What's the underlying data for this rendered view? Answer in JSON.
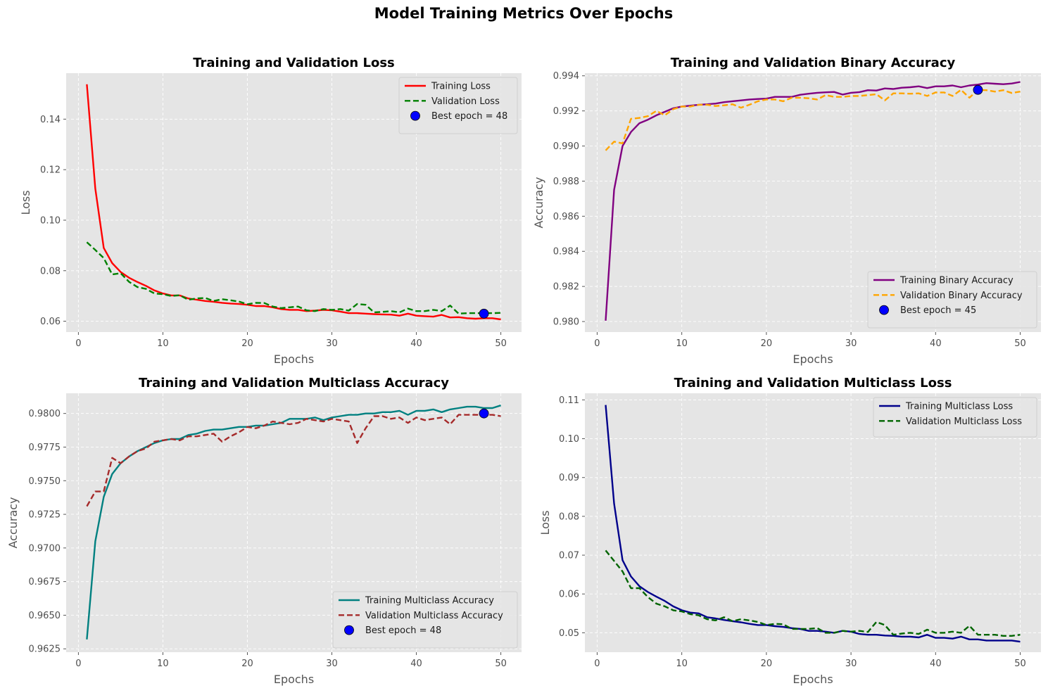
{
  "figure": {
    "suptitle": "Model Training Metrics Over Epochs"
  },
  "colors": {
    "plot_bg": "#e5e5e5",
    "grid": "#ffffff",
    "tick_text": "#4d4d4d",
    "label_text": "#555555",
    "title_text": "#000000"
  },
  "chart_data": [
    {
      "type": "line",
      "title": "Training and Validation Loss",
      "xlabel": "Epochs",
      "ylabel": "Loss",
      "xlim": [
        -1.45,
        52.45
      ],
      "ylim": [
        0.0557,
        0.1582
      ],
      "xticks": [
        0,
        10,
        20,
        30,
        40,
        50
      ],
      "yticks": [
        0.06,
        0.08,
        0.1,
        0.12,
        0.14
      ],
      "ytick_labels": [
        "0.06",
        "0.08",
        "0.10",
        "0.12",
        "0.14"
      ],
      "legend_loc": "top-right",
      "x": [
        1,
        2,
        3,
        4,
        5,
        6,
        7,
        8,
        9,
        10,
        11,
        12,
        13,
        14,
        15,
        16,
        17,
        18,
        19,
        20,
        21,
        22,
        23,
        24,
        25,
        26,
        27,
        28,
        29,
        30,
        31,
        32,
        33,
        34,
        35,
        36,
        37,
        38,
        39,
        40,
        41,
        42,
        43,
        44,
        45,
        46,
        47,
        48,
        49,
        50
      ],
      "series": [
        {
          "name": "Training Loss",
          "color": "#ff0000",
          "dash": "solid",
          "values": [
            0.1538,
            0.1125,
            0.089,
            0.083,
            0.0795,
            0.0772,
            0.0755,
            0.074,
            0.0722,
            0.071,
            0.0702,
            0.0702,
            0.069,
            0.0685,
            0.068,
            0.0677,
            0.0673,
            0.067,
            0.0668,
            0.0665,
            0.066,
            0.066,
            0.0655,
            0.0648,
            0.0645,
            0.0645,
            0.064,
            0.0642,
            0.0645,
            0.0643,
            0.0638,
            0.0632,
            0.0632,
            0.063,
            0.0628,
            0.0627,
            0.0626,
            0.0622,
            0.063,
            0.0622,
            0.062,
            0.0618,
            0.0625,
            0.0615,
            0.0616,
            0.0612,
            0.061,
            0.0612,
            0.0612,
            0.0607
          ]
        },
        {
          "name": "Validation Loss",
          "color": "#008000",
          "dash": "dashed",
          "values": [
            0.0913,
            0.0882,
            0.085,
            0.0785,
            0.079,
            0.0756,
            0.0735,
            0.0728,
            0.071,
            0.0707,
            0.07,
            0.0703,
            0.0685,
            0.069,
            0.0692,
            0.068,
            0.0687,
            0.0683,
            0.0678,
            0.0667,
            0.0673,
            0.0672,
            0.0658,
            0.0652,
            0.0655,
            0.0658,
            0.0643,
            0.064,
            0.0648,
            0.0645,
            0.0648,
            0.0642,
            0.0668,
            0.0665,
            0.0635,
            0.0637,
            0.064,
            0.0635,
            0.065,
            0.064,
            0.064,
            0.0645,
            0.064,
            0.0662,
            0.063,
            0.0632,
            0.0632,
            0.0632,
            0.0632,
            0.0633
          ]
        }
      ],
      "best": {
        "label": "Best epoch = 48",
        "x": 48,
        "y": 0.063,
        "color": "#0000ff"
      }
    },
    {
      "type": "line",
      "title": "Training and Validation Binary Accuracy",
      "xlabel": "Epochs",
      "ylabel": "Accuracy",
      "xlim": [
        -1.45,
        52.45
      ],
      "ylim": [
        0.9794,
        0.99415
      ],
      "xticks": [
        0,
        10,
        20,
        30,
        40,
        50
      ],
      "yticks": [
        0.98,
        0.982,
        0.984,
        0.986,
        0.988,
        0.99,
        0.992,
        0.994
      ],
      "ytick_labels": [
        "0.980",
        "0.982",
        "0.984",
        "0.986",
        "0.988",
        "0.990",
        "0.992",
        "0.994"
      ],
      "legend_loc": "bottom-right",
      "x": [
        1,
        2,
        3,
        4,
        5,
        6,
        7,
        8,
        9,
        10,
        11,
        12,
        13,
        14,
        15,
        16,
        17,
        18,
        19,
        20,
        21,
        22,
        23,
        24,
        25,
        26,
        27,
        28,
        29,
        30,
        31,
        32,
        33,
        34,
        35,
        36,
        37,
        38,
        39,
        40,
        41,
        42,
        43,
        44,
        45,
        46,
        47,
        48,
        49,
        50
      ],
      "series": [
        {
          "name": "Training Binary Accuracy",
          "color": "#800080",
          "dash": "solid",
          "values": [
            0.98005,
            0.9875,
            0.99,
            0.9908,
            0.9913,
            0.9915,
            0.99175,
            0.99195,
            0.99215,
            0.99225,
            0.9923,
            0.99235,
            0.99238,
            0.99242,
            0.9925,
            0.99255,
            0.9926,
            0.99265,
            0.99268,
            0.9927,
            0.9928,
            0.9928,
            0.9928,
            0.99292,
            0.99298,
            0.99303,
            0.99306,
            0.99308,
            0.99293,
            0.99303,
            0.99307,
            0.99318,
            0.99316,
            0.99328,
            0.99325,
            0.99332,
            0.99335,
            0.9934,
            0.9933,
            0.9934,
            0.9934,
            0.99345,
            0.99335,
            0.99345,
            0.9935,
            0.99358,
            0.99355,
            0.99352,
            0.99356,
            0.99365
          ]
        },
        {
          "name": "Validation Binary Accuracy",
          "color": "#ffa500",
          "dash": "dashed",
          "values": [
            0.98975,
            0.99025,
            0.99015,
            0.99155,
            0.9916,
            0.9917,
            0.992,
            0.99175,
            0.9921,
            0.99225,
            0.99225,
            0.99235,
            0.99235,
            0.99228,
            0.99232,
            0.99238,
            0.99218,
            0.99235,
            0.99255,
            0.99265,
            0.99265,
            0.99255,
            0.99275,
            0.99275,
            0.99272,
            0.99265,
            0.9929,
            0.9928,
            0.9928,
            0.99285,
            0.99285,
            0.9929,
            0.99295,
            0.9926,
            0.993,
            0.993,
            0.99298,
            0.993,
            0.99285,
            0.99305,
            0.99305,
            0.99285,
            0.9932,
            0.99275,
            0.9932,
            0.99318,
            0.9931,
            0.99318,
            0.99302,
            0.9931
          ]
        }
      ],
      "best": {
        "label": "Best epoch = 45",
        "x": 45,
        "y": 0.9932,
        "color": "#0000ff"
      }
    },
    {
      "type": "line",
      "title": "Training and Validation Multiclass Accuracy",
      "xlabel": "Epochs",
      "ylabel": "Accuracy",
      "xlim": [
        -1.45,
        52.45
      ],
      "ylim": [
        0.96225,
        0.9815
      ],
      "xticks": [
        0,
        10,
        20,
        30,
        40,
        50
      ],
      "yticks": [
        0.9625,
        0.965,
        0.9675,
        0.97,
        0.9725,
        0.975,
        0.9775,
        0.98
      ],
      "ytick_labels": [
        "0.9625",
        "0.9650",
        "0.9675",
        "0.9700",
        "0.9725",
        "0.9750",
        "0.9775",
        "0.9800"
      ],
      "legend_loc": "bottom-right",
      "x": [
        1,
        2,
        3,
        4,
        5,
        6,
        7,
        8,
        9,
        10,
        11,
        12,
        13,
        14,
        15,
        16,
        17,
        18,
        19,
        20,
        21,
        22,
        23,
        24,
        25,
        26,
        27,
        28,
        29,
        30,
        31,
        32,
        33,
        34,
        35,
        36,
        37,
        38,
        39,
        40,
        41,
        42,
        43,
        44,
        45,
        46,
        47,
        48,
        49,
        50
      ],
      "series": [
        {
          "name": "Training Multiclass Accuracy",
          "color": "#008080",
          "dash": "solid",
          "values": [
            0.9632,
            0.9705,
            0.9738,
            0.9755,
            0.9763,
            0.9768,
            0.9772,
            0.9775,
            0.9778,
            0.978,
            0.9781,
            0.9781,
            0.9784,
            0.9785,
            0.9787,
            0.9788,
            0.9788,
            0.9789,
            0.979,
            0.979,
            0.9791,
            0.9791,
            0.9792,
            0.9793,
            0.9796,
            0.9796,
            0.9796,
            0.9797,
            0.9795,
            0.9797,
            0.9798,
            0.9799,
            0.9799,
            0.98,
            0.98,
            0.9801,
            0.9801,
            0.9802,
            0.9799,
            0.9802,
            0.9802,
            0.9803,
            0.9801,
            0.9803,
            0.9804,
            0.9805,
            0.9805,
            0.9804,
            0.9804,
            0.9806
          ]
        },
        {
          "name": "Validation Multiclass Accuracy",
          "color": "#a52a2a",
          "dash": "dashed",
          "values": [
            0.9731,
            0.9742,
            0.9742,
            0.9767,
            0.9763,
            0.9768,
            0.9772,
            0.9774,
            0.9779,
            0.978,
            0.9781,
            0.978,
            0.9783,
            0.9783,
            0.9784,
            0.9785,
            0.9779,
            0.9783,
            0.9786,
            0.979,
            0.9789,
            0.9791,
            0.9794,
            0.9793,
            0.9792,
            0.9793,
            0.9796,
            0.9795,
            0.9794,
            0.9796,
            0.9795,
            0.9794,
            0.9778,
            0.9789,
            0.9798,
            0.9798,
            0.9796,
            0.9797,
            0.9793,
            0.9797,
            0.9795,
            0.9796,
            0.9797,
            0.9792,
            0.9799,
            0.9799,
            0.9799,
            0.9799,
            0.9799,
            0.9798
          ]
        }
      ],
      "best": {
        "label": "Best epoch = 48",
        "x": 48,
        "y": 0.98,
        "color": "#0000ff"
      }
    },
    {
      "type": "line",
      "title": "Training and Validation Multiclass Loss",
      "xlabel": "Epochs",
      "ylabel": "Loss",
      "xlim": [
        -1.45,
        52.45
      ],
      "ylim": [
        0.045,
        0.1117
      ],
      "xticks": [
        0,
        10,
        20,
        30,
        40,
        50
      ],
      "yticks": [
        0.05,
        0.06,
        0.07,
        0.08,
        0.09,
        0.1,
        0.11
      ],
      "ytick_labels": [
        "0.05",
        "0.06",
        "0.07",
        "0.08",
        "0.09",
        "0.10",
        "0.11"
      ],
      "legend_loc": "top-right",
      "x": [
        1,
        2,
        3,
        4,
        5,
        6,
        7,
        8,
        9,
        10,
        11,
        12,
        13,
        14,
        15,
        16,
        17,
        18,
        19,
        20,
        21,
        22,
        23,
        24,
        25,
        26,
        27,
        28,
        29,
        30,
        31,
        32,
        33,
        34,
        35,
        36,
        37,
        38,
        39,
        40,
        41,
        42,
        43,
        44,
        45,
        46,
        47,
        48,
        49,
        50
      ],
      "series": [
        {
          "name": "Training Multiclass Loss",
          "color": "#00008b",
          "dash": "solid",
          "values": [
            0.1087,
            0.0833,
            0.0687,
            0.0645,
            0.062,
            0.0605,
            0.0593,
            0.0582,
            0.0568,
            0.0558,
            0.0552,
            0.055,
            0.054,
            0.0537,
            0.0533,
            0.053,
            0.0527,
            0.0523,
            0.052,
            0.052,
            0.0517,
            0.0515,
            0.0512,
            0.051,
            0.0505,
            0.0505,
            0.0503,
            0.05,
            0.0505,
            0.0503,
            0.0497,
            0.0495,
            0.0495,
            0.0493,
            0.0492,
            0.049,
            0.049,
            0.0488,
            0.0495,
            0.0487,
            0.0487,
            0.0485,
            0.049,
            0.0483,
            0.0483,
            0.048,
            0.048,
            0.048,
            0.048,
            0.0477
          ]
        },
        {
          "name": "Validation Multiclass Loss",
          "color": "#006400",
          "dash": "dashed",
          "values": [
            0.0712,
            0.0685,
            0.0658,
            0.0615,
            0.0615,
            0.0592,
            0.0575,
            0.0568,
            0.0558,
            0.0555,
            0.0548,
            0.0545,
            0.0535,
            0.0532,
            0.054,
            0.053,
            0.0535,
            0.0532,
            0.0528,
            0.052,
            0.0523,
            0.0522,
            0.051,
            0.051,
            0.051,
            0.0512,
            0.05,
            0.05,
            0.0505,
            0.0503,
            0.0505,
            0.0502,
            0.0528,
            0.052,
            0.0495,
            0.0498,
            0.05,
            0.0497,
            0.0508,
            0.05,
            0.05,
            0.0503,
            0.05,
            0.0518,
            0.0495,
            0.0495,
            0.0495,
            0.0492,
            0.0492,
            0.0495
          ]
        }
      ],
      "best": null
    }
  ]
}
